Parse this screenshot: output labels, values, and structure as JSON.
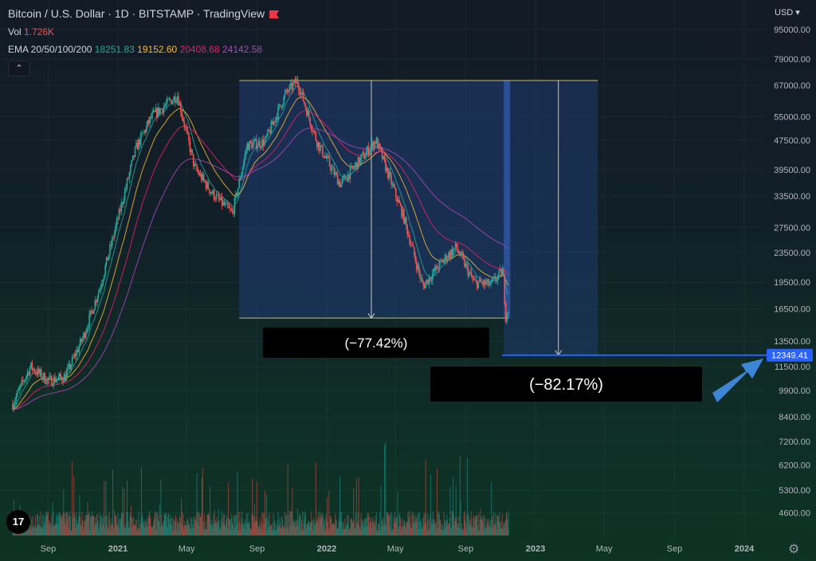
{
  "header": {
    "title": "Bitcoin / U.S. Dollar · 1D · BITSTAMP · TradingView",
    "vol_label": "Vol",
    "vol_value": "1.726K",
    "ema_label": "EMA 20/50/100/200",
    "ema_values": [
      "18251.83",
      "19152.60",
      "20408.68",
      "24142.58"
    ],
    "collapse_icon": "chevron-up-icon",
    "currency": "USD ▾"
  },
  "colors": {
    "ema20": "#26a69a",
    "ema50": "#f7b731",
    "ema100": "#e91e63",
    "ema200": "#ab47bc",
    "vol_value": "#ef5350",
    "box": "#1e3a6e",
    "price_line": "#2962ff",
    "arrow": "#3d86d6"
  },
  "chart_data": {
    "type": "candlestick",
    "y_scale": "log",
    "y_tick_labels": [
      "95000.00",
      "79000.00",
      "67000.00",
      "55000.00",
      "47500.00",
      "39500.00",
      "33500.00",
      "27500.00",
      "23500.00",
      "19500.00",
      "16500.00",
      "13500.00",
      "11500.00",
      "9900.00",
      "8400.00",
      "7200.00",
      "6200.00",
      "5300.00",
      "4600.00"
    ],
    "x_tick_labels": [
      "Sep",
      "2021",
      "May",
      "Sep",
      "2022",
      "May",
      "Sep",
      "2023",
      "May",
      "Sep",
      "2024"
    ],
    "current_price": "12349.41",
    "annotations": [
      {
        "label": "(−77.42%)",
        "from": 69000,
        "to": 15580
      },
      {
        "label": "(−82.17%)",
        "from": 69000,
        "to": 12349.41
      }
    ],
    "price_path": [
      [
        "2020-07-01",
        9100
      ],
      [
        "2020-08-01",
        11500
      ],
      [
        "2020-09-01",
        10500
      ],
      [
        "2020-10-01",
        10800
      ],
      [
        "2020-11-01",
        13800
      ],
      [
        "2020-12-01",
        19000
      ],
      [
        "2021-01-01",
        29000
      ],
      [
        "2021-02-01",
        45000
      ],
      [
        "2021-03-01",
        55000
      ],
      [
        "2021-04-15",
        63000
      ],
      [
        "2021-05-15",
        40000
      ],
      [
        "2021-06-15",
        34000
      ],
      [
        "2021-07-20",
        30000
      ],
      [
        "2021-08-15",
        46000
      ],
      [
        "2021-09-15",
        47000
      ],
      [
        "2021-10-20",
        63000
      ],
      [
        "2021-11-10",
        69000
      ],
      [
        "2021-12-15",
        47000
      ],
      [
        "2022-01-25",
        36000
      ],
      [
        "2022-03-28",
        47500
      ],
      [
        "2022-05-15",
        29500
      ],
      [
        "2022-06-18",
        19000
      ],
      [
        "2022-07-25",
        22500
      ],
      [
        "2022-08-15",
        24300
      ],
      [
        "2022-09-15",
        19500
      ],
      [
        "2022-10-15",
        19200
      ],
      [
        "2022-11-05",
        21000
      ],
      [
        "2022-11-10",
        15800
      ],
      [
        "2022-11-15",
        16700
      ]
    ]
  }
}
